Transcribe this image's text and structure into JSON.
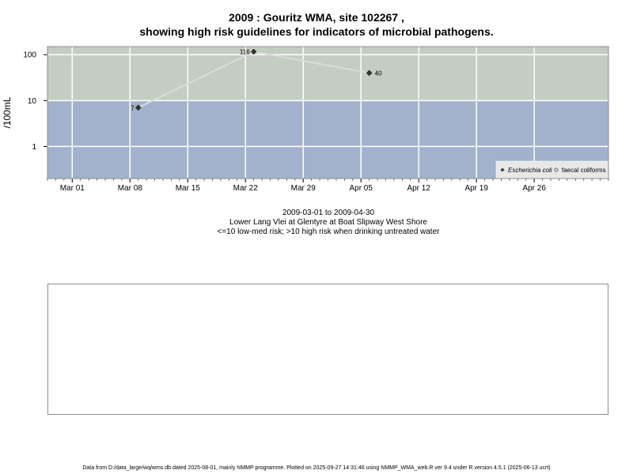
{
  "title_line1": "2009 : Gouritz WMA, site 102267 ,",
  "title_line2": "showing high risk guidelines for indicators of microbial pathogens.",
  "caption": {
    "date_range": "2009-03-01 to 2009-04-30",
    "site": "Lower Lang Vlei at Glentyre at Boat Slipway West Shore",
    "risk_note": "<=10 low-med risk; >10 high risk when drinking untreated water"
  },
  "footer": "Data from D:/data_large/wq/wms.db dated 2025-08-01, mainly NMMP programme. Plotted on 2025-09-27 14:31:46 using NMMP_WMA_web.R ver 9.4 under R version 4.5.1 (2025-06-13 ucrt)",
  "colors": {
    "high_risk_zone": "#c3cdc1",
    "low_risk_zone": "#a2b2cc",
    "grid": "#ffffff",
    "line": "#dcdcdc",
    "point": "#333333"
  },
  "chart_data": {
    "type": "scatter",
    "ylabel": "/100mL",
    "yscale": "log",
    "ylim": [
      0.2,
      150
    ],
    "xlim": [
      "2009-02-26",
      "2009-05-05"
    ],
    "y_ticks": [
      1,
      10,
      100
    ],
    "y_tick_labels": [
      "1",
      "10",
      "100"
    ],
    "x_ticks": [
      "2009-03-01",
      "2009-03-08",
      "2009-03-15",
      "2009-03-22",
      "2009-03-29",
      "2009-04-05",
      "2009-04-12",
      "2009-04-19",
      "2009-04-26"
    ],
    "x_tick_labels": [
      "Mar 01",
      "Mar 08",
      "Mar 15",
      "Mar 22",
      "Mar 29",
      "Apr 05",
      "Apr 12",
      "Apr 19",
      "Apr 26"
    ],
    "risk_threshold": 10,
    "series": [
      {
        "name": "Escherichia coli",
        "marker": "filled-diamond",
        "points": [
          {
            "x": "2009-03-09",
            "y": 7,
            "label": "7"
          },
          {
            "x": "2009-03-23",
            "y": 116,
            "label": "116"
          },
          {
            "x": "2009-04-06",
            "y": 40,
            "label": "40"
          }
        ]
      },
      {
        "name": "faecal coliforms",
        "marker": "open-diamond",
        "points": []
      }
    ],
    "legend_position": "bottom-right",
    "grid": true
  }
}
